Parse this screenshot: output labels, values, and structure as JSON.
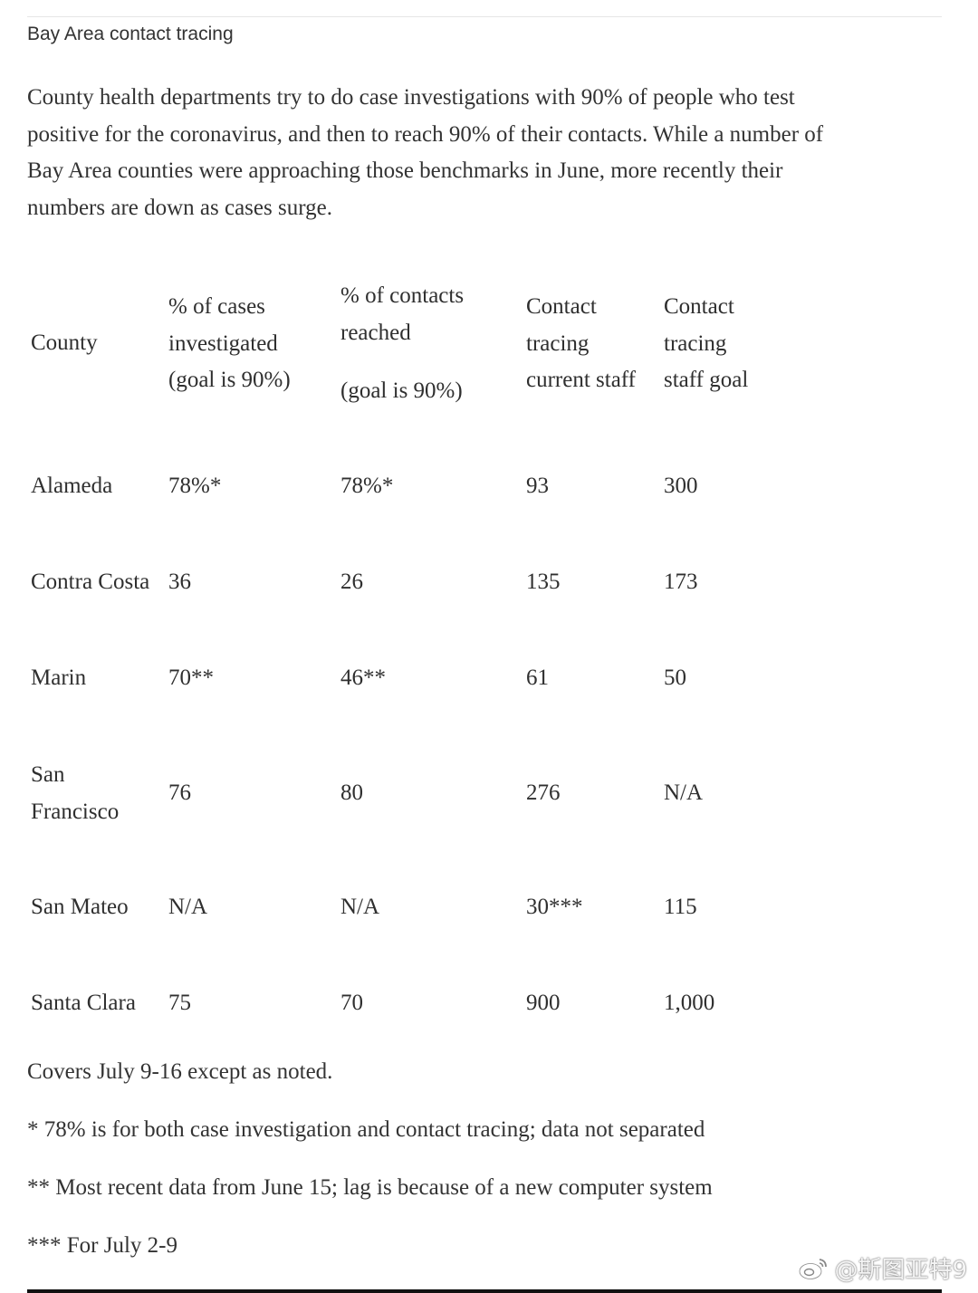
{
  "section_label": "Bay Area contact tracing",
  "intro_lines": [
    "County health departments try to do case investigations with 90% of people who test",
    "positive for the coronavirus, and then to reach 90% of their contacts. While a number of",
    "Bay Area counties were approaching those benchmarks in June, more recently their",
    "numbers are down as cases surge."
  ],
  "table": {
    "headers": {
      "county": [
        "County"
      ],
      "cases": [
        "% of cases",
        "investigated",
        "(goal is 90%)"
      ],
      "contacts": [
        "% of contacts",
        "reached",
        "(goal is 90%)"
      ],
      "current_staff": [
        "Contact",
        "tracing",
        "current staff"
      ],
      "staff_goal": [
        "Contact",
        "tracing",
        "staff goal"
      ]
    },
    "rows": [
      {
        "county": [
          "Alameda"
        ],
        "cases": "78%*",
        "contacts": "78%*",
        "current_staff": "93",
        "staff_goal": "300"
      },
      {
        "county": [
          "Contra Costa"
        ],
        "cases": "36",
        "contacts": "26",
        "current_staff": "135",
        "staff_goal": "173"
      },
      {
        "county": [
          "Marin"
        ],
        "cases": "70**",
        "contacts": "46**",
        "current_staff": "61",
        "staff_goal": "50"
      },
      {
        "county": [
          "San",
          "Francisco"
        ],
        "cases": "76",
        "contacts": "80",
        "current_staff": "276",
        "staff_goal": "N/A"
      },
      {
        "county": [
          "San Mateo"
        ],
        "cases": "N/A",
        "contacts": "N/A",
        "current_staff": "30***",
        "staff_goal": "115"
      },
      {
        "county": [
          "Santa Clara"
        ],
        "cases": "75",
        "contacts": "70",
        "current_staff": "900",
        "staff_goal": "1,000"
      }
    ]
  },
  "notes": [
    "Covers July 9-16 except as noted.",
    "* 78% is for both case investigation and contact tracing; data not separated",
    "** Most recent data from June 15; lag is because of a new computer system",
    "*** For July 2-9"
  ],
  "watermark": "@斯图亚特9",
  "icons": {
    "watermark_logo": "weibo-icon"
  }
}
